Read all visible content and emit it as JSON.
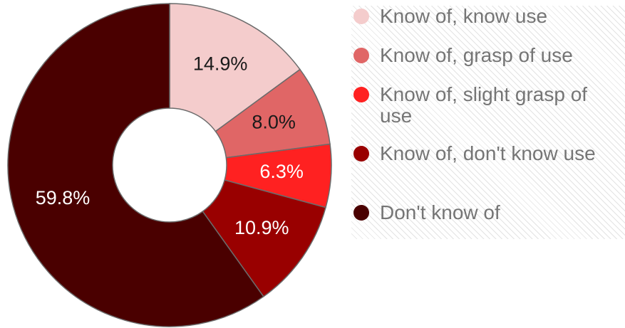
{
  "chart_data": {
    "type": "pie",
    "donut": true,
    "legend_position": "right",
    "slices": [
      {
        "label": "Know of, know use",
        "value": 14.9,
        "display": "14.9%",
        "color": "#f4cccc",
        "label_color": "#1a1a1a"
      },
      {
        "label": "Know of, grasp of use",
        "value": 8.0,
        "display": "8.0%",
        "color": "#e06666",
        "label_color": "#1a1a1a"
      },
      {
        "label": "Know of, slight grasp of use",
        "value": 6.3,
        "display": "6.3%",
        "color": "#ff2121",
        "label_color": "#ffffff"
      },
      {
        "label": "Know of, don't know use",
        "value": 10.9,
        "display": "10.9%",
        "color": "#990000",
        "label_color": "#ffffff"
      },
      {
        "label": "Don't know of",
        "value": 59.8,
        "display": "59.8%",
        "color": "#4a0000",
        "label_color": "#ffffff"
      }
    ]
  }
}
